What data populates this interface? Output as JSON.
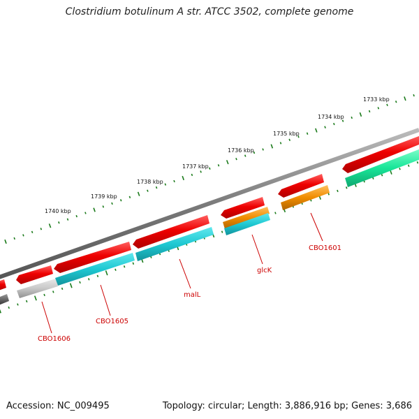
{
  "header": {
    "title": "Clostridium botulinum A str. ATCC 3502, complete genome"
  },
  "footer": {
    "accession": "Accession: NC_009495",
    "summary": "Topology: circular; Length: 3,886,916 bp; Genes: 3,686"
  },
  "genome_map": {
    "topology": "circular",
    "tick_labels": [
      "1733 kbp",
      "1734 kbp",
      "1735 kbp",
      "1736 kbp",
      "1737 kbp",
      "1738 kbp",
      "1739 kbp",
      "1740 kbp"
    ],
    "gene_labels": [
      "CBO1601",
      "glcK",
      "malL",
      "CBO1605",
      "CBO1606"
    ],
    "colors": {
      "forward_cds": "#e00000",
      "reverse_cyan": "#1ec8d2",
      "reverse_orange": "#f08c00",
      "reverse_green": "#19e699",
      "reverse_gray": "#c8c8c8",
      "backbone": "#7a7a7a",
      "ticks": "#1a7a1a",
      "label": "#cc0000"
    }
  }
}
